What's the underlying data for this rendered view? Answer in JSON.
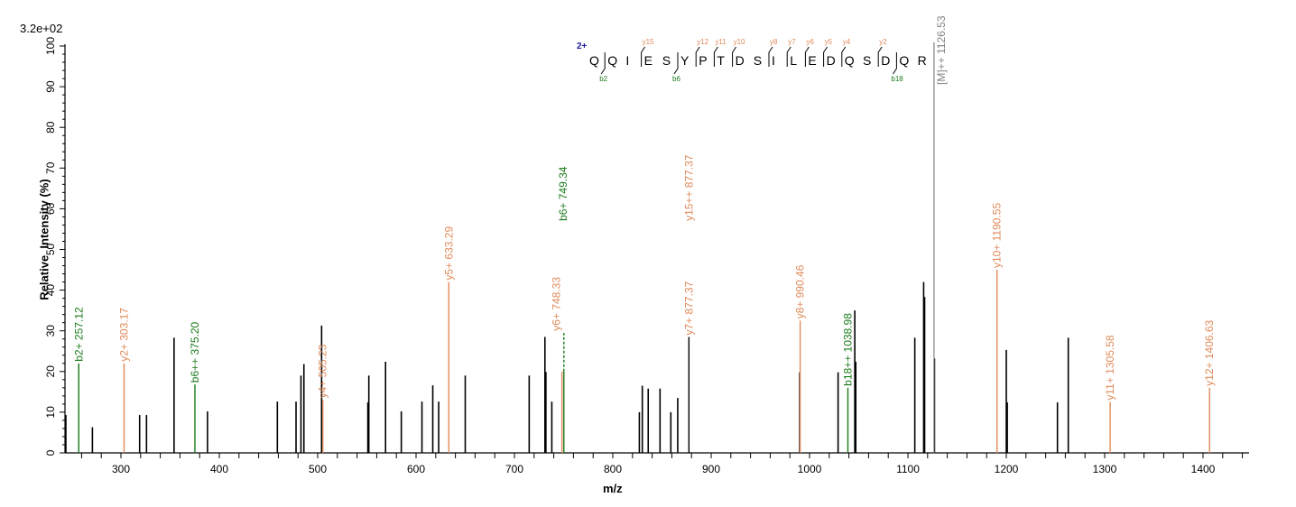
{
  "header": {
    "scale": "3.2e+02"
  },
  "axes": {
    "ylabel": "Relative  Intensity (%)",
    "xlabel": "m/z"
  },
  "colors": {
    "b_ion": "#1a7a1a",
    "y_ion": "#e08a5a",
    "unassigned": "#000000",
    "precursor": "#808080",
    "charge": "#1a1aa0"
  },
  "sequence": {
    "charge": "2+",
    "residues": [
      "Q",
      "Q",
      "I",
      "E",
      "S",
      "Y",
      "P",
      "T",
      "D",
      "S",
      "I",
      "L",
      "E",
      "D",
      "Q",
      "S",
      "D",
      "Q",
      "R"
    ],
    "y_marks": [
      {
        "after": 3,
        "label": "y15"
      },
      {
        "after": 6,
        "label": "y12"
      },
      {
        "after": 7,
        "label": "y11"
      },
      {
        "after": 8,
        "label": "y10"
      },
      {
        "after": 10,
        "label": "y8"
      },
      {
        "after": 11,
        "label": "y7"
      },
      {
        "after": 12,
        "label": "y6"
      },
      {
        "after": 13,
        "label": "y5"
      },
      {
        "after": 14,
        "label": "y4"
      },
      {
        "after": 16,
        "label": "y2"
      }
    ],
    "b_marks": [
      {
        "after": 1,
        "label": "b2"
      },
      {
        "after": 5,
        "label": "b6"
      },
      {
        "after": 17,
        "label": "b18"
      }
    ]
  },
  "chart_data": {
    "type": "bar",
    "title": "",
    "xlabel": "m/z",
    "ylabel": "Relative  Intensity (%)",
    "scale_label": "3.2e+02",
    "xlim": [
      243,
      1446
    ],
    "ylim": [
      0,
      100
    ],
    "xticks": [
      300,
      400,
      500,
      600,
      700,
      800,
      900,
      1000,
      1100,
      1200,
      1300,
      1400
    ],
    "yticks": [
      0,
      10,
      20,
      30,
      40,
      50,
      60,
      70,
      80,
      90,
      100
    ],
    "grid": false,
    "precursor": {
      "label": "[M]++ 1126.53",
      "mz": 1126.53
    },
    "peaks": [
      {
        "mz": 244,
        "intensity": 9.3
      },
      {
        "mz": 271,
        "intensity": 6.3
      },
      {
        "mz": 319,
        "intensity": 9.3
      },
      {
        "mz": 326,
        "intensity": 9.3
      },
      {
        "mz": 354,
        "intensity": 28.3
      },
      {
        "mz": 388,
        "intensity": 10.2
      },
      {
        "mz": 459,
        "intensity": 12.6
      },
      {
        "mz": 478,
        "intensity": 12.6
      },
      {
        "mz": 483,
        "intensity": 19.0
      },
      {
        "mz": 486,
        "intensity": 21.8
      },
      {
        "mz": 504,
        "intensity": 31.3
      },
      {
        "mz": 551,
        "intensity": 12.4
      },
      {
        "mz": 552,
        "intensity": 19.0
      },
      {
        "mz": 569,
        "intensity": 22.4
      },
      {
        "mz": 585,
        "intensity": 10.2
      },
      {
        "mz": 606,
        "intensity": 12.6
      },
      {
        "mz": 617,
        "intensity": 16.6
      },
      {
        "mz": 623,
        "intensity": 12.6
      },
      {
        "mz": 650,
        "intensity": 19.0
      },
      {
        "mz": 715,
        "intensity": 19.0
      },
      {
        "mz": 731,
        "intensity": 28.5
      },
      {
        "mz": 732,
        "intensity": 19.9
      },
      {
        "mz": 738,
        "intensity": 12.6
      },
      {
        "mz": 827,
        "intensity": 10.0
      },
      {
        "mz": 830,
        "intensity": 16.5
      },
      {
        "mz": 836,
        "intensity": 15.8
      },
      {
        "mz": 848,
        "intensity": 15.8
      },
      {
        "mz": 859,
        "intensity": 10.0
      },
      {
        "mz": 866,
        "intensity": 13.5
      },
      {
        "mz": 990,
        "intensity": 19.8
      },
      {
        "mz": 1029,
        "intensity": 19.8
      },
      {
        "mz": 1046,
        "intensity": 35.0
      },
      {
        "mz": 1047,
        "intensity": 22.4
      },
      {
        "mz": 1107,
        "intensity": 28.3
      },
      {
        "mz": 1116,
        "intensity": 42.0
      },
      {
        "mz": 1117,
        "intensity": 38.3
      },
      {
        "mz": 1127,
        "intensity": 23.2
      },
      {
        "mz": 1200,
        "intensity": 25.3
      },
      {
        "mz": 1201,
        "intensity": 12.4
      },
      {
        "mz": 1252,
        "intensity": 12.4
      },
      {
        "mz": 1263,
        "intensity": 28.3
      }
    ],
    "annotated_peaks": [
      {
        "label": "b2+ 257.12",
        "mz": 257.12,
        "intensity": 22.0,
        "type": "b"
      },
      {
        "label": "y2+ 303.17",
        "mz": 303.17,
        "intensity": 22.0,
        "type": "y"
      },
      {
        "label": "b6++ 375.20",
        "mz": 375.2,
        "intensity": 16.8,
        "type": "b"
      },
      {
        "label": "y4+ 505.23",
        "mz": 505.23,
        "intensity": 13.0,
        "type": "y"
      },
      {
        "label": "y5+ 633.29",
        "mz": 633.29,
        "intensity": 42.0,
        "type": "y"
      },
      {
        "label": "y6+ 748.33",
        "mz": 748.33,
        "intensity": 20.0,
        "type": "y"
      },
      {
        "label": "b6+ 749.34",
        "mz": 749.34,
        "intensity": 29.5,
        "type": "b",
        "dashed_upper": true
      },
      {
        "label": "y7+ 877.37",
        "mz": 877.37,
        "intensity": 28.5,
        "type": "y",
        "bar_color": "unassigned"
      },
      {
        "label": "y15++ 877.37",
        "mz": 877.37,
        "intensity": 28.5,
        "type": "y",
        "label_only": true
      },
      {
        "label": "y8+ 990.46",
        "mz": 990.46,
        "intensity": 32.5,
        "type": "y"
      },
      {
        "label": "b18++ 1038.98",
        "mz": 1038.98,
        "intensity": 16.0,
        "type": "b"
      },
      {
        "label": "y10+ 1190.55",
        "mz": 1190.55,
        "intensity": 45.0,
        "type": "y"
      },
      {
        "label": "y11+ 1305.58",
        "mz": 1305.58,
        "intensity": 12.5,
        "type": "y"
      },
      {
        "label": "y12+ 1406.63",
        "mz": 1406.63,
        "intensity": 16.0,
        "type": "y"
      }
    ]
  }
}
